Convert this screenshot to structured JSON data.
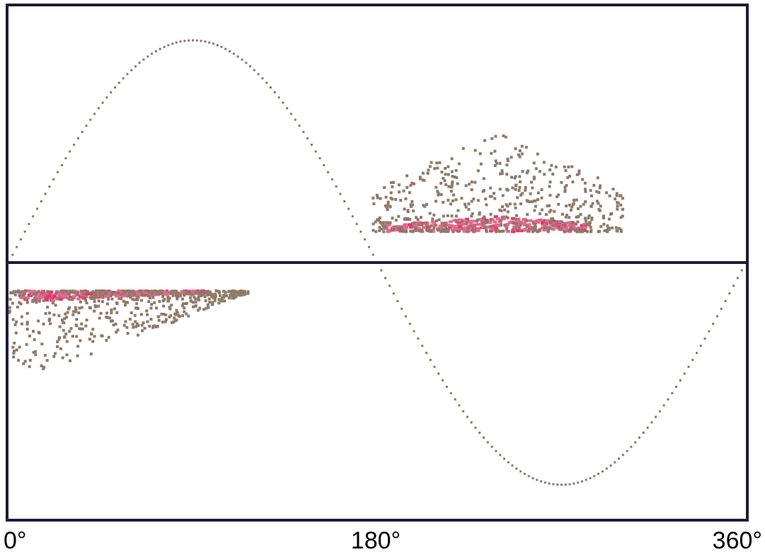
{
  "chart_data": {
    "type": "scatter",
    "title": "",
    "xlabel": "",
    "ylabel": "",
    "xlim": [
      0,
      360
    ],
    "ylim": [
      -1,
      1
    ],
    "grid": false,
    "legend": "none",
    "x_ticks": [
      "0°",
      "180°",
      "360°"
    ],
    "reference_curve": {
      "kind": "sine",
      "amplitude": 0.865,
      "x_start": 0,
      "x_end": 360,
      "step": 2
    },
    "series": [
      {
        "kind": "pd-cluster",
        "x_range": [
          0,
          117
        ],
        "base": -0.11,
        "extent": -0.43,
        "core_extent": -0.15
      },
      {
        "kind": "pd-cluster",
        "x_range": [
          178,
          300
        ],
        "base": 0.12,
        "extent": 0.51,
        "core_extent": 0.18
      }
    ],
    "colors": {
      "frame": "#1e1b3a",
      "curve": "#8a7765",
      "dots": "#8f7a68",
      "core": "#e66890",
      "core_dark": "#dc3a6c"
    }
  }
}
